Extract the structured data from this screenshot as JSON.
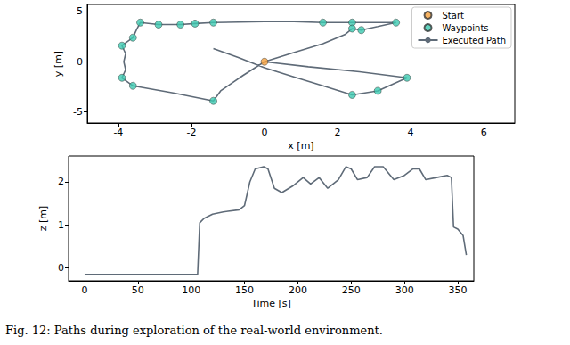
{
  "chart_data": [
    {
      "type": "line",
      "x_label": "x [m]",
      "y_label": "y [m]",
      "xlim": [
        -4.85,
        6.85
      ],
      "xticks": [
        -4,
        -2,
        0,
        2,
        4,
        6
      ],
      "ylim": [
        -6.1,
        5.7
      ],
      "yticks": [
        -5,
        0,
        5
      ],
      "grid": false,
      "legend": "upper right",
      "series": [
        {
          "name": "Start",
          "type": "scatter",
          "marker": "circle",
          "color": "#f5a03c",
          "x": [
            0
          ],
          "y": [
            0
          ]
        },
        {
          "name": "Waypoints",
          "type": "scatter",
          "marker": "circle",
          "color": "#3cc9b0",
          "x": [
            -3.4,
            -2.9,
            -2.3,
            -1.9,
            -1.4,
            1.6,
            2.4,
            2.4,
            2.65,
            3.6,
            -3.6,
            -3.9,
            -3.9,
            -3.6,
            -1.4,
            2.4,
            3.1,
            3.9
          ],
          "y": [
            3.9,
            3.7,
            3.7,
            3.8,
            3.9,
            3.9,
            3.9,
            3.3,
            3.15,
            3.9,
            2.4,
            1.6,
            -1.6,
            -2.4,
            -3.9,
            -3.3,
            -2.9,
            -1.6
          ]
        },
        {
          "name": "Executed Path",
          "type": "line",
          "line_style": "solid",
          "color": "#5f6b78",
          "x": [
            0,
            0.8,
            1.6,
            2.2,
            2.4,
            2.65,
            3.1,
            3.6,
            3.0,
            2.4,
            1.6,
            0.8,
            0,
            -0.7,
            -1.4,
            -1.9,
            -2.3,
            -2.9,
            -3.4,
            -3.5,
            -3.6,
            -3.9,
            -3.8,
            -3.85,
            -3.8,
            -3.9,
            -3.6,
            -2.5,
            -1.4,
            -1.2,
            -0.6,
            0,
            1.2,
            2.6,
            3.9,
            3.1,
            2.4,
            1.6,
            0.8,
            0,
            -0.7,
            -1.4
          ],
          "y": [
            0,
            0.9,
            1.8,
            2.7,
            3.3,
            3.15,
            3.5,
            3.9,
            3.9,
            3.9,
            3.9,
            4.0,
            4.0,
            3.95,
            3.9,
            3.8,
            3.7,
            3.7,
            3.9,
            3.2,
            2.4,
            1.6,
            0.8,
            0,
            -0.8,
            -1.6,
            -2.4,
            -3.1,
            -3.9,
            -2.9,
            -1.4,
            0,
            -0.5,
            -1.0,
            -1.6,
            -2.9,
            -3.3,
            -2.4,
            -1.5,
            -0.6,
            0.4,
            1.3
          ]
        }
      ]
    },
    {
      "type": "line",
      "x_label": "Time [s]",
      "y_label": "z [m]",
      "xlim": [
        -15,
        365
      ],
      "xticks": [
        0,
        50,
        100,
        150,
        200,
        250,
        300,
        350
      ],
      "ylim": [
        -0.3,
        2.6
      ],
      "yticks": [
        0,
        1,
        2
      ],
      "grid": false,
      "series": [
        {
          "name": "z",
          "type": "line",
          "line_style": "solid",
          "color": "#5f6b78",
          "x": [
            0,
            50,
            106,
            108,
            112,
            120,
            130,
            145,
            150,
            155,
            160,
            168,
            172,
            178,
            185,
            195,
            205,
            212,
            220,
            228,
            238,
            245,
            250,
            256,
            265,
            272,
            280,
            290,
            300,
            308,
            314,
            320,
            330,
            340,
            344,
            346,
            350,
            355,
            358
          ],
          "y": [
            -0.15,
            -0.15,
            -0.15,
            1.05,
            1.15,
            1.25,
            1.3,
            1.35,
            1.45,
            2.0,
            2.3,
            2.35,
            2.3,
            1.85,
            1.75,
            1.9,
            2.1,
            1.95,
            2.1,
            1.85,
            2.05,
            2.35,
            2.3,
            2.05,
            2.1,
            2.35,
            2.35,
            2.05,
            2.15,
            2.3,
            2.3,
            2.05,
            2.1,
            2.15,
            2.1,
            0.95,
            0.9,
            0.75,
            0.3
          ]
        }
      ]
    }
  ],
  "caption": "Fig. 12: Paths during exploration of the real-world environment."
}
